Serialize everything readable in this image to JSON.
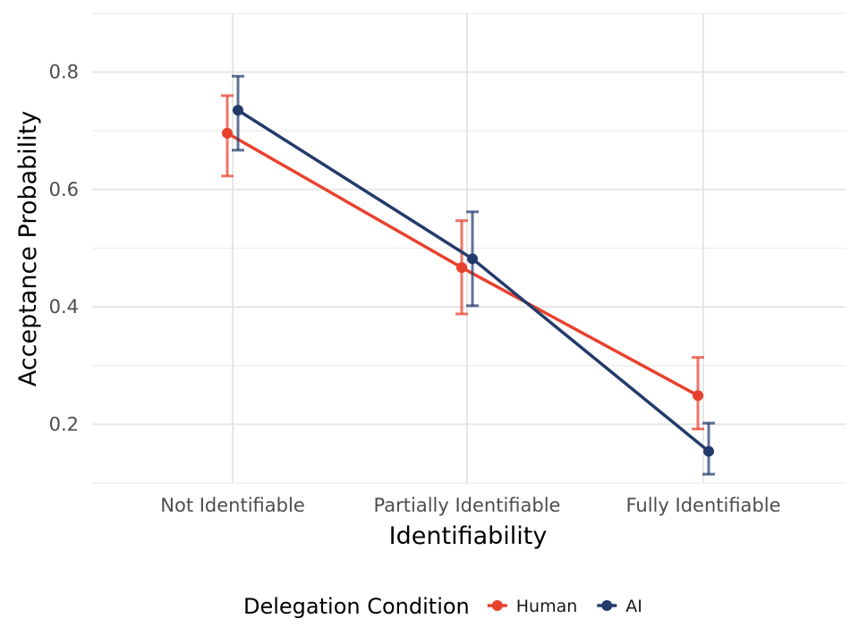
{
  "chart_data": {
    "type": "line",
    "title": "",
    "xlabel": "Identifiability",
    "ylabel": "Acceptance Probability",
    "categories": [
      "Not Identifiable",
      "Partially Identifiable",
      "Fully Identifiable"
    ],
    "ylim": [
      0.1,
      0.9
    ],
    "y_ticks": [
      0.2,
      0.4,
      0.6,
      0.8
    ],
    "y_tick_labels": [
      "0.2",
      "0.4",
      "0.6",
      "0.8"
    ],
    "grid": true,
    "legend": {
      "title": "Delegation Condition",
      "position": "bottom"
    },
    "series": [
      {
        "name": "Human",
        "color": "#e8412e",
        "values": [
          0.696,
          0.467,
          0.249
        ],
        "error_low": [
          0.623,
          0.388,
          0.192
        ],
        "error_high": [
          0.76,
          0.547,
          0.314
        ]
      },
      {
        "name": "AI",
        "color": "#233a6b",
        "values": [
          0.735,
          0.482,
          0.154
        ],
        "error_low": [
          0.667,
          0.402,
          0.115
        ],
        "error_high": [
          0.793,
          0.562,
          0.202
        ]
      }
    ]
  }
}
